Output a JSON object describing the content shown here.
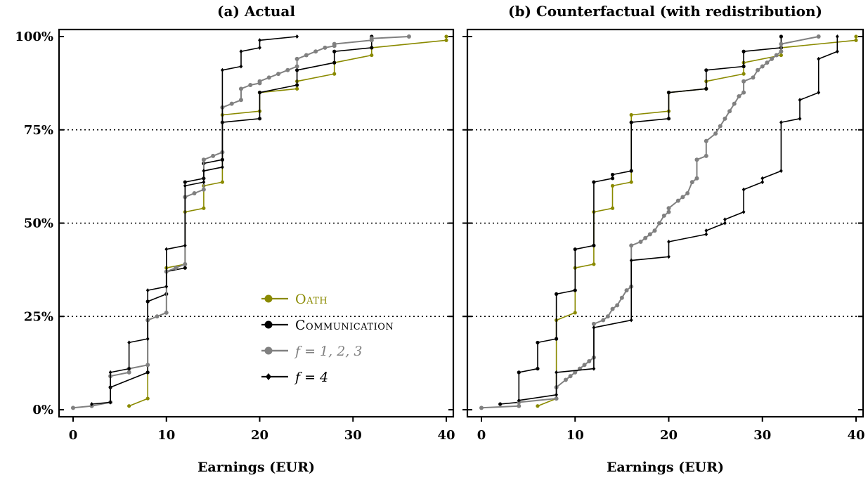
{
  "colors": {
    "oath": "#8a8a00",
    "communication": "#000000",
    "f123": "#808080",
    "f4": "#000000"
  },
  "legend": [
    {
      "label": "Oath",
      "color": "#8a8a00",
      "marker": "circle",
      "smallcaps": true
    },
    {
      "label": "Communication",
      "color": "#000000",
      "marker": "circle",
      "smallcaps": true
    },
    {
      "label": "f = 1, 2, 3",
      "color": "#808080",
      "marker": "circle",
      "smallcaps": false
    },
    {
      "label": "f = 4",
      "color": "#000000",
      "marker": "diamond",
      "smallcaps": false
    }
  ],
  "chart_data": [
    {
      "type": "line",
      "title": "(a) Actual",
      "xlabel": "Earnings (EUR)",
      "ylabel": "",
      "xlim": [
        0,
        40
      ],
      "ylim": [
        0,
        100
      ],
      "xticks": [
        "0",
        "10",
        "20",
        "30",
        "40"
      ],
      "yticks": [
        "0%",
        "25%",
        "50%",
        "75%",
        "100%"
      ],
      "grid_y": [
        25,
        50,
        75
      ],
      "series": [
        {
          "name": "Oath",
          "x": [
            6,
            8,
            8,
            10,
            10,
            12,
            12,
            14,
            14,
            16,
            16,
            20,
            20,
            24,
            24,
            28,
            28,
            32,
            32,
            40,
            40
          ],
          "y": [
            1,
            3,
            24,
            26,
            38,
            39,
            53,
            54,
            60,
            61,
            79,
            80,
            85,
            86,
            88,
            90,
            93,
            95,
            97,
            99,
            100
          ]
        },
        {
          "name": "Communication",
          "x": [
            4,
            8,
            8,
            10,
            10,
            12,
            12,
            14,
            14,
            16,
            16,
            20,
            20,
            24,
            24,
            28,
            28,
            32,
            32
          ],
          "y": [
            6,
            10,
            29,
            31,
            37,
            38,
            61,
            62,
            66,
            67,
            77,
            78,
            85,
            87,
            91,
            93,
            96,
            97,
            100
          ]
        },
        {
          "name": "f = 1, 2, 3",
          "x": [
            0,
            2,
            4,
            4,
            6,
            6,
            8,
            8,
            9,
            10,
            10,
            11,
            12,
            12,
            13,
            14,
            14,
            15,
            16,
            16,
            17,
            18,
            18,
            19,
            20,
            20,
            21,
            22,
            23,
            24,
            24,
            25,
            26,
            27,
            28,
            28,
            32,
            32,
            36
          ],
          "y": [
            0.5,
            1,
            2,
            9,
            10,
            11,
            12,
            24,
            25,
            26,
            37,
            38,
            39,
            57,
            58,
            59,
            67,
            68,
            69,
            81,
            82,
            83,
            86,
            87,
            87.5,
            88,
            89,
            90,
            91,
            92,
            94,
            95,
            96,
            97,
            97.5,
            98,
            99,
            99.5,
            100
          ]
        },
        {
          "name": "f = 4",
          "x": [
            2,
            4,
            4,
            6,
            6,
            8,
            8,
            10,
            10,
            12,
            12,
            14,
            14,
            16,
            16,
            18,
            18,
            20,
            20,
            24
          ],
          "y": [
            1.5,
            2,
            10,
            11,
            18,
            19,
            32,
            33,
            43,
            44,
            60,
            61,
            64,
            65,
            91,
            92,
            96,
            97,
            99,
            100
          ]
        }
      ]
    },
    {
      "type": "line",
      "title": "(b) Counterfactual (with redistribution)",
      "xlabel": "Earnings (EUR)",
      "ylabel": "",
      "xlim": [
        0,
        40
      ],
      "ylim": [
        0,
        100
      ],
      "xticks": [
        "0",
        "10",
        "20",
        "30",
        "40"
      ],
      "yticks": [
        "0%",
        "25%",
        "50%",
        "75%",
        "100%"
      ],
      "grid_y": [
        25,
        50,
        75
      ],
      "series": [
        {
          "name": "Oath",
          "x": [
            6,
            8,
            8,
            10,
            10,
            12,
            12,
            14,
            14,
            16,
            16,
            20,
            20,
            24,
            24,
            28,
            28,
            32,
            32,
            40,
            40
          ],
          "y": [
            1,
            3,
            24,
            26,
            38,
            39,
            53,
            54,
            60,
            61,
            79,
            80,
            85,
            86,
            88,
            90,
            93,
            95,
            97,
            99,
            100
          ]
        },
        {
          "name": "Communication",
          "x": [
            2,
            4,
            4,
            6,
            6,
            8,
            8,
            10,
            10,
            12,
            12,
            14,
            14,
            16,
            16,
            20,
            20,
            24,
            24,
            28,
            28,
            32,
            32
          ],
          "y": [
            1.5,
            2,
            10,
            11,
            18,
            19,
            31,
            32,
            43,
            44,
            61,
            62,
            63,
            64,
            77,
            78,
            85,
            86,
            91,
            92,
            96,
            97,
            100
          ]
        },
        {
          "name": "f = 1, 2, 3",
          "x": [
            0,
            4,
            4,
            8,
            8,
            9,
            9.5,
            10,
            10.5,
            11,
            11.5,
            12,
            12,
            13,
            13.5,
            14,
            14.5,
            15,
            15.5,
            16,
            16,
            17,
            17.5,
            18,
            18.5,
            19,
            19.5,
            20,
            20,
            21,
            21.5,
            22,
            22.5,
            23,
            23,
            24,
            24,
            25,
            25.5,
            26,
            26.5,
            27,
            27.5,
            28,
            28,
            29,
            29.5,
            30,
            30.5,
            31,
            31.5,
            32,
            32,
            36
          ],
          "y": [
            0.5,
            1,
            2,
            3,
            6,
            8,
            9,
            10,
            11,
            12,
            13,
            14,
            23,
            24,
            25,
            27,
            28,
            30,
            32,
            33,
            44,
            45,
            46,
            47,
            48,
            50,
            52,
            53,
            54,
            56,
            57,
            58,
            61,
            62,
            67,
            68,
            72,
            74,
            76,
            78,
            80,
            82,
            84,
            85,
            88,
            89,
            91,
            92,
            93,
            94,
            95,
            96,
            98,
            100
          ]
        },
        {
          "name": "f = 4",
          "x": [
            4,
            8,
            8,
            12,
            12,
            16,
            16,
            20,
            20,
            24,
            24,
            26,
            26,
            28,
            28,
            30,
            30,
            32,
            32,
            34,
            34,
            36,
            36,
            38,
            38
          ],
          "y": [
            2.5,
            4,
            10,
            11,
            22,
            24,
            40,
            41,
            45,
            47,
            48,
            50,
            51,
            53,
            59,
            61,
            62,
            64,
            77,
            78,
            83,
            85,
            94,
            96,
            100
          ]
        }
      ]
    }
  ]
}
